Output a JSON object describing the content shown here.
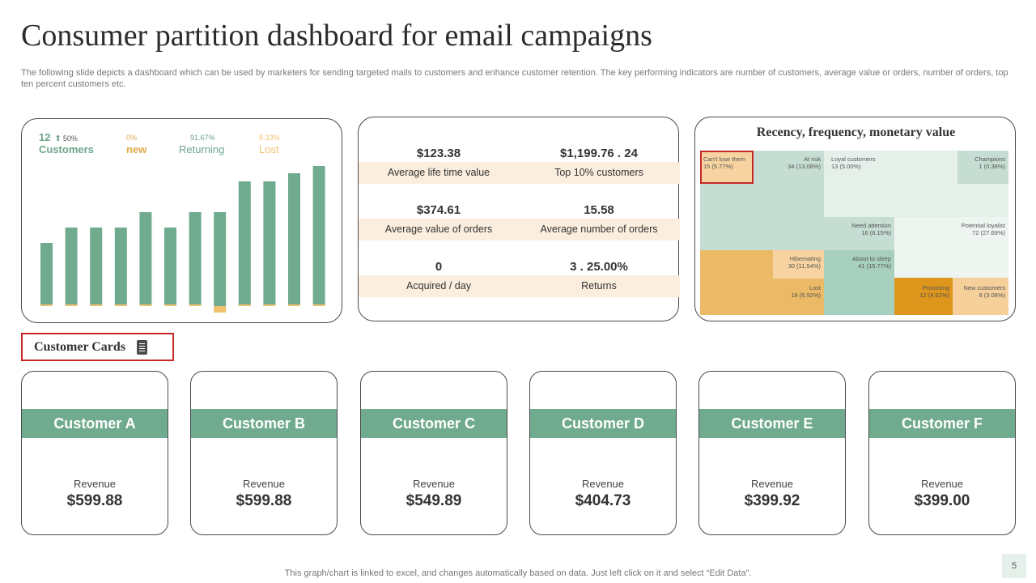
{
  "title": "Consumer partition dashboard for email campaigns",
  "subtitle": "The following slide depicts a dashboard which can be used by marketers for sending targeted mails to customers and enhance customer retention. The key performing indicators are number of customers, average value or orders, number of orders, top ten percent customers etc.",
  "customers_panel": {
    "count": "12",
    "count_pct": "50%",
    "count_label": "Customers",
    "new_pct": "0%",
    "new_label": "new",
    "returning_pct": "91.67%",
    "returning_label": "Returning",
    "lost_pct": "8.33%",
    "lost_label": "Lost"
  },
  "colors": {
    "green": "#71ab8f",
    "orange": "#e0a84a",
    "tan": "#f2c16e",
    "light_peach": "#fbeede",
    "red": "#c62828"
  },
  "chart_data": {
    "type": "bar",
    "categories": [
      "1",
      "2",
      "3",
      "4",
      "5",
      "6",
      "7",
      "8",
      "9",
      "10",
      "11",
      "12"
    ],
    "series": [
      {
        "values": [
          78,
          97,
          97,
          97,
          116,
          97,
          116,
          116,
          154,
          154,
          164,
          173
        ]
      },
      {
        "values": [
          2,
          2,
          2,
          2,
          2,
          2,
          2,
          -8,
          2,
          2,
          2,
          2
        ]
      }
    ],
    "ylim": [
      -10,
      180
    ]
  },
  "kpis": [
    {
      "value": "$123.38",
      "label": "Average  life time value"
    },
    {
      "value": "$1,199.76 . 24",
      "label": "Top 10% customers"
    },
    {
      "value": "$374.61",
      "label": "Average  value  of orders"
    },
    {
      "value": "15.58",
      "label": "Average  number of orders"
    },
    {
      "value": "0",
      "label": "Acquired / day"
    },
    {
      "value": "3 . 25.00%",
      "label": "Returns"
    }
  ],
  "rfm": {
    "title": "Recency, frequency, monetary value",
    "segments": [
      {
        "name": "Can't lose them",
        "value": "15 (5.77%)"
      },
      {
        "name": "At risk",
        "value": "34 (13.08%)"
      },
      {
        "name": "Loyal customers",
        "value": "13 (5.00%)"
      },
      {
        "name": "Champions",
        "value": "1 (0.38%)"
      },
      {
        "name": "Need attention",
        "value": "16 (6.15%)"
      },
      {
        "name": "Potential loyalist",
        "value": "72 (27.69%)"
      },
      {
        "name": "Hibernating",
        "value": "30 (11.54%)"
      },
      {
        "name": "About to sleep",
        "value": "41 (15.77%)"
      },
      {
        "name": "Lost",
        "value": "18 (6.92%)"
      },
      {
        "name": "Promising",
        "value": "12 (4.62%)"
      },
      {
        "name": "New customers",
        "value": "8 (3.08%)"
      }
    ]
  },
  "customer_cards_label": "Customer Cards",
  "cards": [
    {
      "name": "Customer A",
      "rev_label": "Revenue",
      "revenue": "$599.88"
    },
    {
      "name": "Customer B",
      "rev_label": "Revenue",
      "revenue": "$599.88"
    },
    {
      "name": "Customer C",
      "rev_label": "Revenue",
      "revenue": "$549.89"
    },
    {
      "name": "Customer D",
      "rev_label": "Revenue",
      "revenue": "$404.73"
    },
    {
      "name": "Customer E",
      "rev_label": "Revenue",
      "revenue": "$399.92"
    },
    {
      "name": "Customer F",
      "rev_label": "Revenue",
      "revenue": "$399.00"
    }
  ],
  "footnote": "This graph/chart is linked to excel,  and changes automatically based on data. Just left click on it and select “Edit Data”.",
  "page_number": "5"
}
